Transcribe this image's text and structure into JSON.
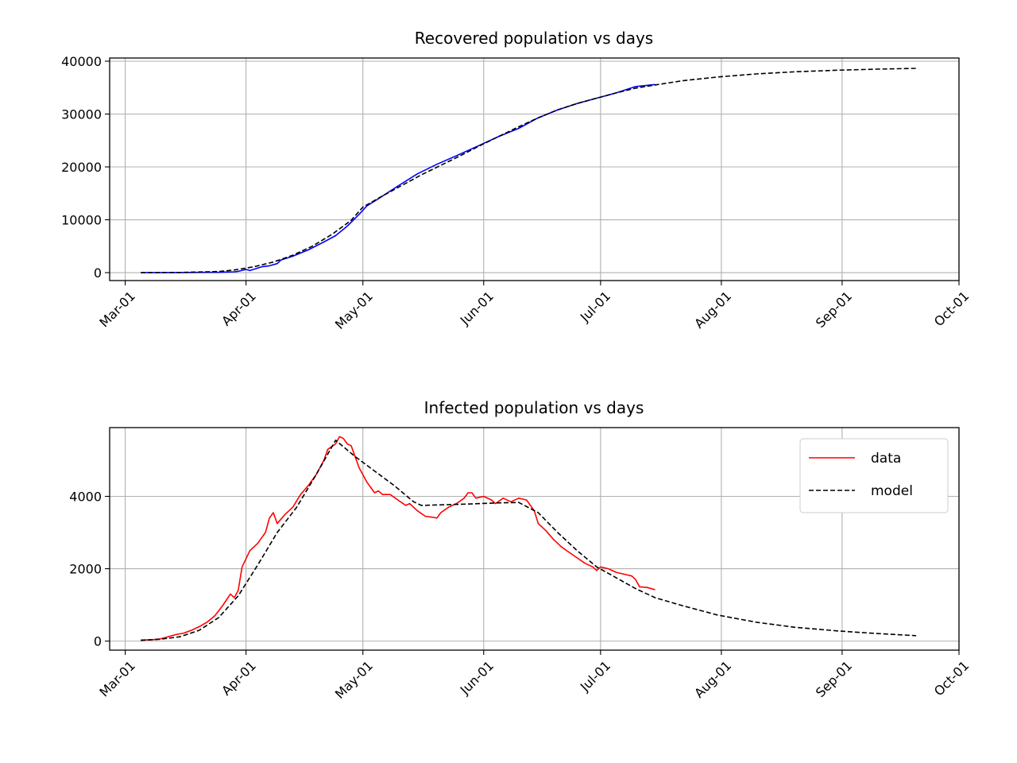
{
  "chart_data": [
    {
      "type": "line",
      "title": "Recovered population vs days",
      "xlabel": "",
      "ylabel": "",
      "x_axis": "date",
      "xlim": [
        "2020-02-26",
        "2020-10-01"
      ],
      "ylim": [
        -1500,
        40600
      ],
      "x_ticks": [
        "Mar-01",
        "Apr-01",
        "May-01",
        "Jun-01",
        "Jul-01",
        "Aug-01",
        "Sep-01",
        "Oct-01"
      ],
      "x_tick_dates": [
        "2020-03-01",
        "2020-04-01",
        "2020-05-01",
        "2020-06-01",
        "2020-07-01",
        "2020-08-01",
        "2020-09-01",
        "2020-10-01"
      ],
      "y_ticks": [
        0,
        10000,
        20000,
        30000,
        40000
      ],
      "grid": true,
      "series": [
        {
          "style": "solid",
          "color": "#0000ff",
          "points": [
            [
              "2020-03-05",
              0
            ],
            [
              "2020-03-15",
              20
            ],
            [
              "2020-03-25",
              60
            ],
            [
              "2020-03-29",
              150
            ],
            [
              "2020-03-30",
              250
            ],
            [
              "2020-04-01",
              600
            ],
            [
              "2020-04-02",
              400
            ],
            [
              "2020-04-05",
              1100
            ],
            [
              "2020-04-07",
              1300
            ],
            [
              "2020-04-09",
              1700
            ],
            [
              "2020-04-10",
              2400
            ],
            [
              "2020-04-13",
              3100
            ],
            [
              "2020-04-17",
              4300
            ],
            [
              "2020-04-21",
              5800
            ],
            [
              "2020-04-24",
              7000
            ],
            [
              "2020-04-27",
              8800
            ],
            [
              "2020-04-30",
              11000
            ],
            [
              "2020-05-02",
              12600
            ],
            [
              "2020-05-05",
              14000
            ],
            [
              "2020-05-10",
              16400
            ],
            [
              "2020-05-15",
              18700
            ],
            [
              "2020-05-20",
              20500
            ],
            [
              "2020-05-25",
              22100
            ],
            [
              "2020-05-31",
              24100
            ],
            [
              "2020-06-05",
              25800
            ],
            [
              "2020-06-10",
              27300
            ],
            [
              "2020-06-15",
              29300
            ],
            [
              "2020-06-20",
              30800
            ],
            [
              "2020-06-25",
              32000
            ],
            [
              "2020-06-30",
              33000
            ],
            [
              "2020-07-05",
              34000
            ],
            [
              "2020-07-10",
              35200
            ],
            [
              "2020-07-15",
              35600
            ]
          ]
        },
        {
          "style": "dashed",
          "color": "#000000",
          "points": [
            [
              "2020-03-05",
              0
            ],
            [
              "2020-03-15",
              30
            ],
            [
              "2020-03-25",
              220
            ],
            [
              "2020-03-29",
              500
            ],
            [
              "2020-04-03",
              1100
            ],
            [
              "2020-04-08",
              2000
            ],
            [
              "2020-04-13",
              3300
            ],
            [
              "2020-04-18",
              5000
            ],
            [
              "2020-04-23",
              7200
            ],
            [
              "2020-04-28",
              9900
            ],
            [
              "2020-05-01",
              12400
            ],
            [
              "2020-05-06",
              14500
            ],
            [
              "2020-05-11",
              16500
            ],
            [
              "2020-05-16",
              18500
            ],
            [
              "2020-05-21",
              20300
            ],
            [
              "2020-05-26",
              22100
            ],
            [
              "2020-05-31",
              24000
            ],
            [
              "2020-06-05",
              25800
            ],
            [
              "2020-06-10",
              27600
            ],
            [
              "2020-06-15",
              29300
            ],
            [
              "2020-06-20",
              30800
            ],
            [
              "2020-06-25",
              32000
            ],
            [
              "2020-06-30",
              33000
            ],
            [
              "2020-07-05",
              34000
            ],
            [
              "2020-07-10",
              34900
            ],
            [
              "2020-07-15",
              35500
            ],
            [
              "2020-07-22",
              36300
            ],
            [
              "2020-07-31",
              37000
            ],
            [
              "2020-08-10",
              37600
            ],
            [
              "2020-08-20",
              38000
            ],
            [
              "2020-08-31",
              38300
            ],
            [
              "2020-09-10",
              38500
            ],
            [
              "2020-09-20",
              38650
            ]
          ]
        }
      ]
    },
    {
      "type": "line",
      "title": "Infected population vs days",
      "xlabel": "",
      "ylabel": "",
      "x_axis": "date",
      "xlim": [
        "2020-02-26",
        "2020-10-01"
      ],
      "ylim": [
        -250,
        5900
      ],
      "x_ticks": [
        "Mar-01",
        "Apr-01",
        "May-01",
        "Jun-01",
        "Jul-01",
        "Aug-01",
        "Sep-01",
        "Oct-01"
      ],
      "x_tick_dates": [
        "2020-03-01",
        "2020-04-01",
        "2020-05-01",
        "2020-06-01",
        "2020-07-01",
        "2020-08-01",
        "2020-09-01",
        "2020-10-01"
      ],
      "y_ticks": [
        0,
        2000,
        4000
      ],
      "grid": true,
      "legend_position": "top-right",
      "series": [
        {
          "name": "data",
          "style": "solid",
          "color": "#ff0000",
          "points": [
            [
              "2020-03-05",
              30
            ],
            [
              "2020-03-08",
              40
            ],
            [
              "2020-03-10",
              60
            ],
            [
              "2020-03-12",
              120
            ],
            [
              "2020-03-14",
              180
            ],
            [
              "2020-03-16",
              220
            ],
            [
              "2020-03-18",
              300
            ],
            [
              "2020-03-20",
              400
            ],
            [
              "2020-03-22",
              520
            ],
            [
              "2020-03-24",
              700
            ],
            [
              "2020-03-26",
              980
            ],
            [
              "2020-03-28",
              1300
            ],
            [
              "2020-03-29",
              1200
            ],
            [
              "2020-03-30",
              1400
            ],
            [
              "2020-03-31",
              2050
            ],
            [
              "2020-04-02",
              2500
            ],
            [
              "2020-04-04",
              2700
            ],
            [
              "2020-04-06",
              3000
            ],
            [
              "2020-04-07",
              3400
            ],
            [
              "2020-04-08",
              3550
            ],
            [
              "2020-04-09",
              3250
            ],
            [
              "2020-04-11",
              3500
            ],
            [
              "2020-04-13",
              3700
            ],
            [
              "2020-04-15",
              4050
            ],
            [
              "2020-04-17",
              4300
            ],
            [
              "2020-04-19",
              4600
            ],
            [
              "2020-04-21",
              5000
            ],
            [
              "2020-04-22",
              5300
            ],
            [
              "2020-04-24",
              5450
            ],
            [
              "2020-04-25",
              5650
            ],
            [
              "2020-04-26",
              5600
            ],
            [
              "2020-04-27",
              5450
            ],
            [
              "2020-04-28",
              5400
            ],
            [
              "2020-04-29",
              5100
            ],
            [
              "2020-04-30",
              4800
            ],
            [
              "2020-05-01",
              4600
            ],
            [
              "2020-05-02",
              4400
            ],
            [
              "2020-05-04",
              4100
            ],
            [
              "2020-05-05",
              4150
            ],
            [
              "2020-05-06",
              4050
            ],
            [
              "2020-05-08",
              4050
            ],
            [
              "2020-05-10",
              3900
            ],
            [
              "2020-05-12",
              3750
            ],
            [
              "2020-05-13",
              3800
            ],
            [
              "2020-05-15",
              3600
            ],
            [
              "2020-05-17",
              3450
            ],
            [
              "2020-05-19",
              3420
            ],
            [
              "2020-05-20",
              3400
            ],
            [
              "2020-05-21",
              3550
            ],
            [
              "2020-05-23",
              3700
            ],
            [
              "2020-05-25",
              3800
            ],
            [
              "2020-05-27",
              3950
            ],
            [
              "2020-05-28",
              4100
            ],
            [
              "2020-05-29",
              4100
            ],
            [
              "2020-05-30",
              3950
            ],
            [
              "2020-06-01",
              4000
            ],
            [
              "2020-06-03",
              3900
            ],
            [
              "2020-06-04",
              3800
            ],
            [
              "2020-06-06",
              3950
            ],
            [
              "2020-06-08",
              3850
            ],
            [
              "2020-06-10",
              3950
            ],
            [
              "2020-06-12",
              3900
            ],
            [
              "2020-06-14",
              3600
            ],
            [
              "2020-06-15",
              3250
            ],
            [
              "2020-06-17",
              3050
            ],
            [
              "2020-06-19",
              2800
            ],
            [
              "2020-06-21",
              2600
            ],
            [
              "2020-06-23",
              2450
            ],
            [
              "2020-06-25",
              2300
            ],
            [
              "2020-06-27",
              2150
            ],
            [
              "2020-06-29",
              2050
            ],
            [
              "2020-06-30",
              1950
            ],
            [
              "2020-07-01",
              2050
            ],
            [
              "2020-07-03",
              2000
            ],
            [
              "2020-07-05",
              1900
            ],
            [
              "2020-07-07",
              1850
            ],
            [
              "2020-07-09",
              1800
            ],
            [
              "2020-07-10",
              1700
            ],
            [
              "2020-07-11",
              1500
            ],
            [
              "2020-07-13",
              1480
            ],
            [
              "2020-07-15",
              1420
            ]
          ]
        },
        {
          "name": "model",
          "style": "dashed",
          "color": "#000000",
          "points": [
            [
              "2020-03-05",
              20
            ],
            [
              "2020-03-10",
              50
            ],
            [
              "2020-03-15",
              120
            ],
            [
              "2020-03-20",
              300
            ],
            [
              "2020-03-25",
              650
            ],
            [
              "2020-03-30",
              1250
            ],
            [
              "2020-04-04",
              2100
            ],
            [
              "2020-04-09",
              3000
            ],
            [
              "2020-04-14",
              3700
            ],
            [
              "2020-04-19",
              4600
            ],
            [
              "2020-04-24",
              5550
            ],
            [
              "2020-04-29",
              5100
            ],
            [
              "2020-05-04",
              4700
            ],
            [
              "2020-05-09",
              4300
            ],
            [
              "2020-05-14",
              3850
            ],
            [
              "2020-05-16",
              3750
            ],
            [
              "2020-05-26",
              3780
            ],
            [
              "2020-06-05",
              3820
            ],
            [
              "2020-06-10",
              3830
            ],
            [
              "2020-06-15",
              3550
            ],
            [
              "2020-06-20",
              3000
            ],
            [
              "2020-06-25",
              2500
            ],
            [
              "2020-06-30",
              2050
            ],
            [
              "2020-07-05",
              1750
            ],
            [
              "2020-07-10",
              1450
            ],
            [
              "2020-07-15",
              1200
            ],
            [
              "2020-07-22",
              980
            ],
            [
              "2020-07-31",
              720
            ],
            [
              "2020-08-10",
              520
            ],
            [
              "2020-08-20",
              380
            ],
            [
              "2020-08-31",
              280
            ],
            [
              "2020-09-10",
              210
            ],
            [
              "2020-09-20",
              150
            ]
          ]
        }
      ]
    }
  ]
}
